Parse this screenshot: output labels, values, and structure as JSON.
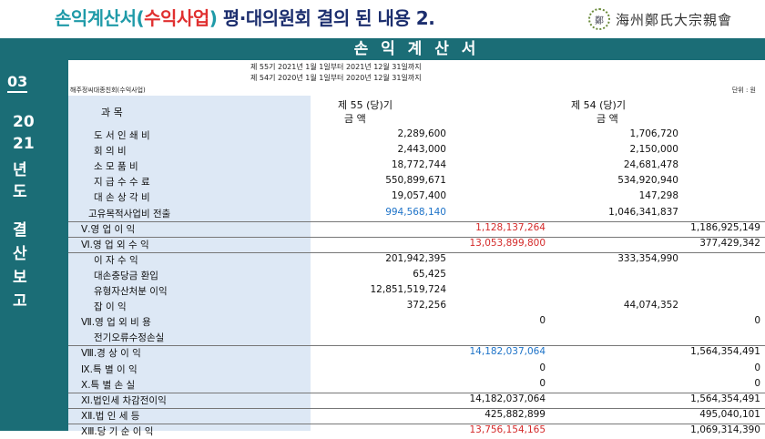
{
  "header": {
    "title_part1": "손익계산서(",
    "title_part2": "수익사업",
    "title_part3": ")",
    "title_part4": " 평·대의원회 결의 된 내용 2.",
    "logo_text": "海州鄭氏大宗親會",
    "logo_seal": "鄭"
  },
  "sidebar": {
    "number": "03",
    "year_line1": "20",
    "year_line2": "21",
    "year_line3": "년",
    "year_line4": "도",
    "label_lines": [
      "결",
      "산",
      "보",
      "고"
    ]
  },
  "statement": {
    "title": "손 익 계 산 서",
    "period1": "제  55기  2021년  1월  1일부터   2021년 12월 31일까지",
    "period2": "제  54기  2020년  1월  1일부터   2020년 12월 31일까지",
    "org": "해주정씨대종친회(수익사업)",
    "unit": "단위 : 원",
    "col_item": "과        목",
    "col_55": "제  55 (당)기",
    "col_54": "제  54 (당)기",
    "col_amount": "금        액",
    "col_amount2": "금        액"
  },
  "rows": [
    {
      "label": "도 서 인 쇄 비",
      "a": "2,289,600",
      "b": "",
      "c": "1,706,720",
      "d": "",
      "indent": 1
    },
    {
      "label": "회     의     비",
      "a": "2,443,000",
      "b": "",
      "c": "2,150,000",
      "d": "",
      "indent": 1
    },
    {
      "label": "소   모   품   비",
      "a": "18,772,744",
      "b": "",
      "c": "24,681,478",
      "d": "",
      "indent": 1
    },
    {
      "label": "지 급 수 수 료",
      "a": "550,899,671",
      "b": "",
      "c": "534,920,940",
      "d": "",
      "indent": 1
    },
    {
      "label": "대 손 상 각 비",
      "a": "19,057,400",
      "b": "",
      "c": "147,298",
      "d": "",
      "indent": 1
    },
    {
      "label": "고유목적사업비 전출",
      "a": "994,568,140",
      "b": "",
      "c": "1,046,341,837",
      "d": "",
      "indent": 2,
      "a_color": "blue",
      "line": true
    },
    {
      "label": "Ⅴ.영  업  이  익",
      "a": "",
      "b": "1,128,137,264",
      "c": "",
      "d": "1,186,925,149",
      "indent": 0,
      "b_color": "red",
      "line": true
    },
    {
      "label": "Ⅵ.영 업 외 수 익",
      "a": "",
      "b": "13,053,899,800",
      "c": "",
      "d": "377,429,342",
      "indent": 0,
      "b_color": "red",
      "line": true
    },
    {
      "label": "이    자    수    익",
      "a": "201,942,395",
      "b": "",
      "c": "333,354,990",
      "d": "",
      "indent": 1
    },
    {
      "label": "대손충당금 환입",
      "a": "65,425",
      "b": "",
      "c": "",
      "d": "",
      "indent": 1
    },
    {
      "label": "유형자산처분 이익",
      "a": "12,851,519,724",
      "b": "",
      "c": "",
      "d": "",
      "indent": 1
    },
    {
      "label": "잡       이       익",
      "a": "372,256",
      "b": "",
      "c": "44,074,352",
      "d": "",
      "indent": 1
    },
    {
      "label": "Ⅶ.영  업  외  비  용",
      "a": "",
      "b": "0",
      "c": "",
      "d": "0",
      "indent": 0
    },
    {
      "label": "전기오류수정손실",
      "a": "",
      "b": "",
      "c": "",
      "d": "",
      "indent": 1,
      "line": true
    },
    {
      "label": "Ⅷ.경   상   이   익",
      "a": "",
      "b": "14,182,037,064",
      "c": "",
      "d": "1,564,354,491",
      "indent": 0,
      "b_color": "blue"
    },
    {
      "label": "Ⅸ.특     별    이    익",
      "a": "",
      "b": "0",
      "c": "",
      "d": "0",
      "indent": 0
    },
    {
      "label": "Ⅹ.특    별    손    실",
      "a": "",
      "b": "0",
      "c": "",
      "d": "0",
      "indent": 0,
      "line": true
    },
    {
      "label": "Ⅺ.법인세 차감전이익",
      "a": "",
      "b": "14,182,037,064",
      "c": "",
      "d": "1,564,354,491",
      "indent": 0,
      "line": true
    },
    {
      "label": "ⅩⅡ.법   인    세   등",
      "a": "",
      "b": "425,882,899",
      "c": "",
      "d": "495,040,101",
      "indent": 0,
      "line": true
    },
    {
      "label": "ⅩⅢ.당  기  순  이  익",
      "a": "",
      "b": "13,756,154,165",
      "c": "",
      "d": "1,069,314,390",
      "indent": 0,
      "b_color": "red"
    }
  ]
}
